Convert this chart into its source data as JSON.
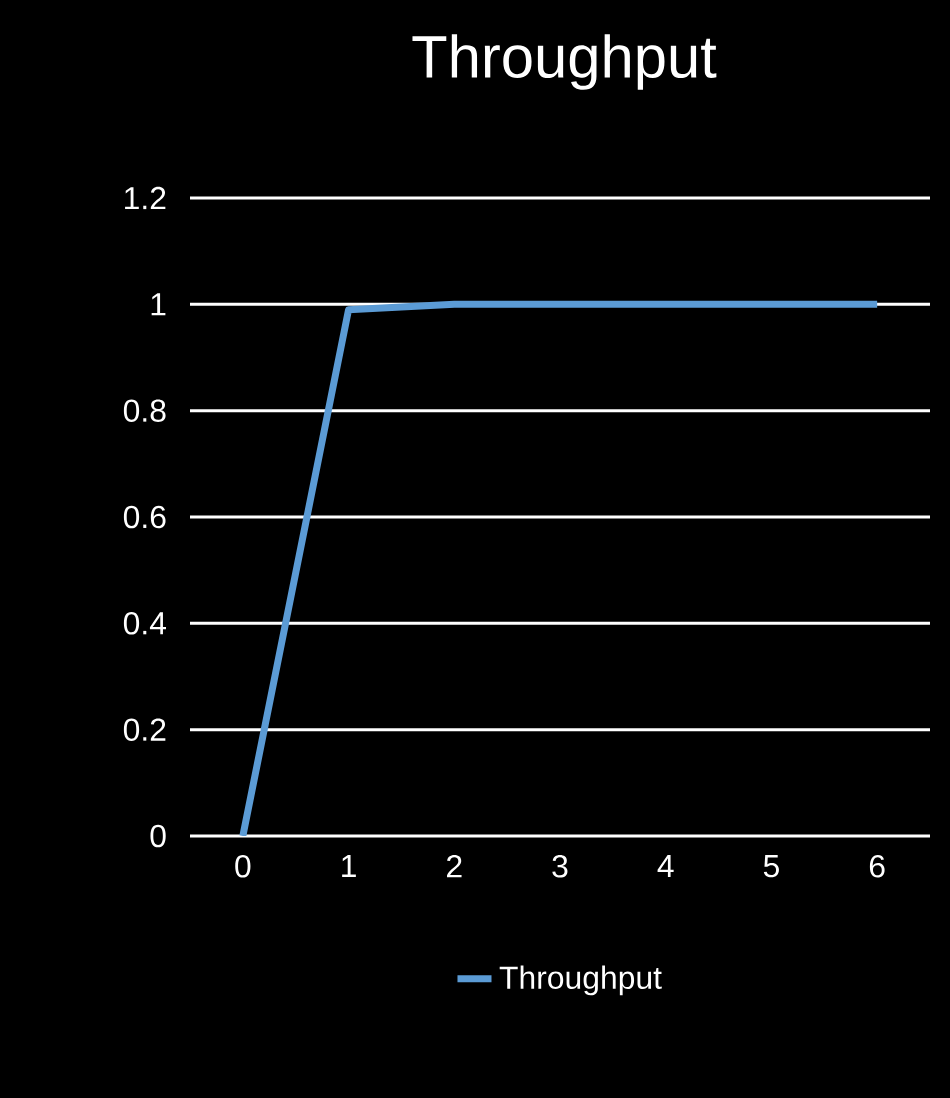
{
  "chart_data": {
    "type": "line",
    "title": "Throughput",
    "categories": [
      "0",
      "1",
      "2",
      "3",
      "4",
      "5",
      "6"
    ],
    "series": [
      {
        "name": "Throughput",
        "color": "#5b9bd5",
        "values": [
          0,
          0.99,
          1,
          1,
          1,
          1,
          1
        ]
      }
    ],
    "ylim": [
      0,
      1.2
    ],
    "yticks": [
      0,
      0.2,
      0.4,
      0.6,
      0.8,
      1,
      1.2
    ],
    "grid": "y",
    "legend": "bottom"
  }
}
